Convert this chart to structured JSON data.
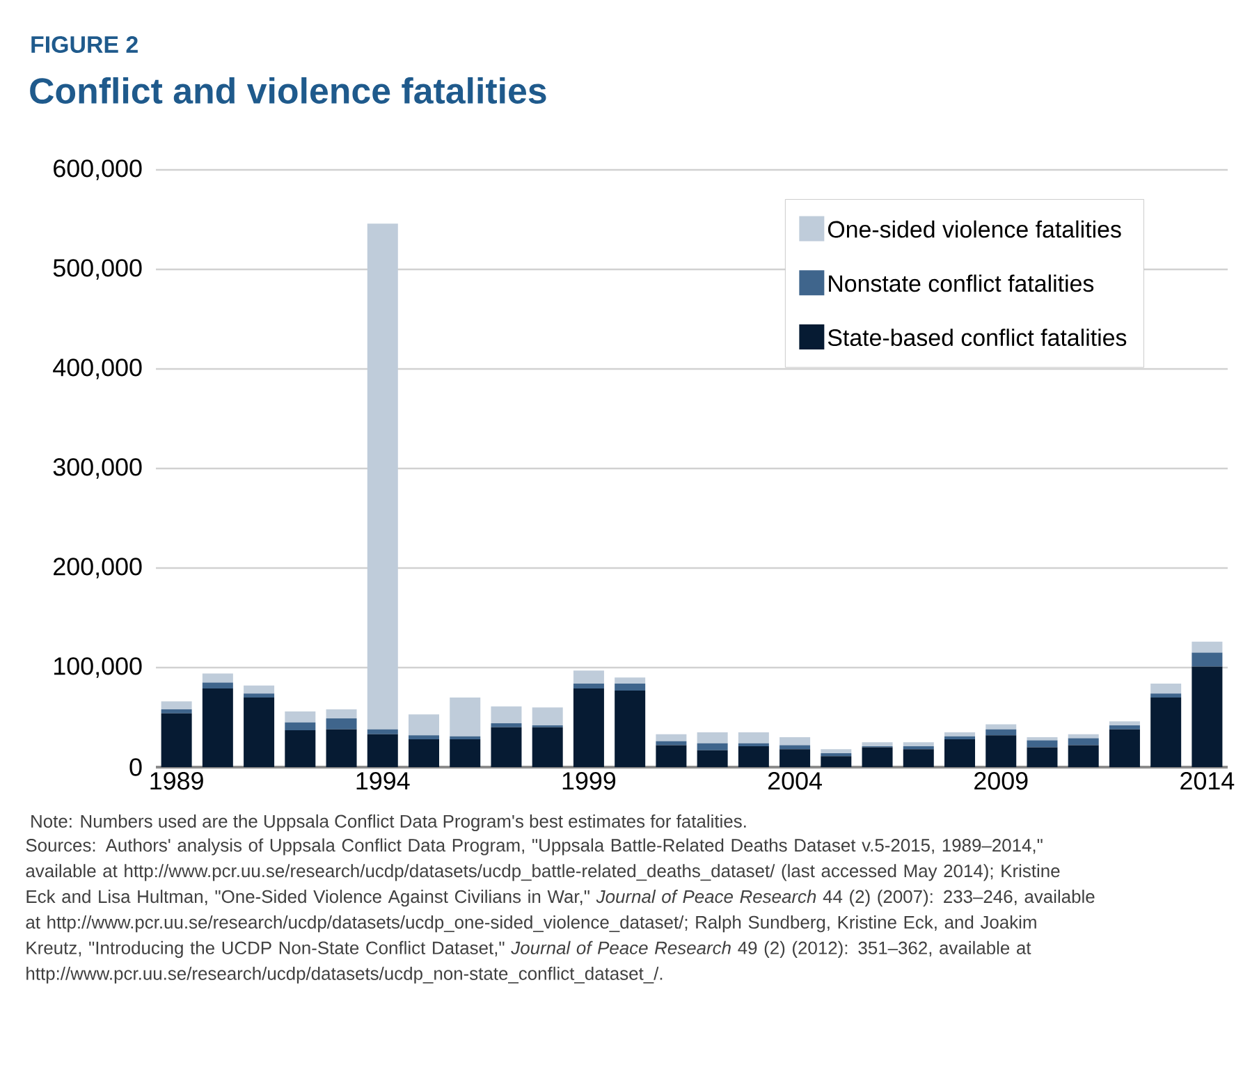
{
  "chart_data": {
    "type": "bar",
    "stacked": true,
    "title": "Conflict and violence fatalities",
    "categories": [
      "1989",
      null,
      null,
      null,
      null,
      "1994",
      null,
      null,
      null,
      null,
      "1999",
      null,
      null,
      null,
      null,
      "2004",
      null,
      null,
      null,
      null,
      "2009",
      null,
      null,
      null,
      null,
      "2014"
    ],
    "series": [
      {
        "name": "State-based conflict fatalities",
        "color": "#061b33",
        "values": [
          54000,
          79000,
          70000,
          37000,
          38000,
          33000,
          28000,
          28000,
          40000,
          40000,
          79000,
          77000,
          22000,
          17000,
          21000,
          18000,
          11000,
          20000,
          18000,
          28000,
          32000,
          20000,
          22000,
          38000,
          70000,
          101000
        ]
      },
      {
        "name": "Nonstate conflict fatalities",
        "color": "#3f658c",
        "values": [
          4000,
          6000,
          4000,
          8000,
          11000,
          5000,
          4000,
          3000,
          4000,
          2000,
          5000,
          7000,
          4000,
          7000,
          3000,
          4000,
          3000,
          1000,
          3000,
          3000,
          6000,
          7000,
          7000,
          4000,
          4000,
          14000
        ]
      },
      {
        "name": "One-sided violence fatalities",
        "color": "#bfccda",
        "values": [
          8000,
          9000,
          8000,
          11000,
          9000,
          508000,
          21000,
          39000,
          17000,
          18000,
          13000,
          6000,
          7000,
          11000,
          11000,
          8000,
          4000,
          4000,
          4000,
          4000,
          5000,
          3000,
          4000,
          4000,
          10000,
          11000
        ]
      }
    ],
    "ylim": [
      0,
      600000
    ],
    "yticks": [
      {
        "value": 0,
        "label": "0"
      },
      {
        "value": 100000,
        "label": "100,000"
      },
      {
        "value": 200000,
        "label": "200,000"
      },
      {
        "value": 300000,
        "label": "300,000"
      },
      {
        "value": 400000,
        "label": "400,000"
      },
      {
        "value": 500000,
        "label": "500,000"
      },
      {
        "value": 600000,
        "label": "600,000"
      }
    ],
    "grid": "y",
    "legend": "top right",
    "annotations": [
      "FIGURE 2",
      "Note: Numbers used are the Uppsala Conflict Data Program's best estimates for fatalities.",
      "Sources: Authors' analysis of Uppsala Conflict Data Program, \"Uppsala Battle-Related Deaths Dataset v.5-2015, 1989–2014,\" available at http://www.pcr.uu.se/research/ucdp/datasets/ucdp_battle-related_deaths_dataset/ (last accessed May 2014); Kristine Eck and Lisa Hultman, \"One-Sided Violence Against Civilians in War,\" *Journal of Peace Research* 44 (2) (2007): 233–246, available at http://www.pcr.uu.se/research/ucdp/datasets/ucdp_one-sided_violence_dataset/; Ralph Sundberg, Kristine Eck, and Joakim Kreutz, \"Introducing the UCDP Non-State Conflict Dataset,\" *Journal of Peace Research* 49 (2) (2012): 351–362, available at http://www.pcr.uu.se/research/ucdp/datasets/ucdp_non-state_conflict_dataset_/."
    ]
  }
}
